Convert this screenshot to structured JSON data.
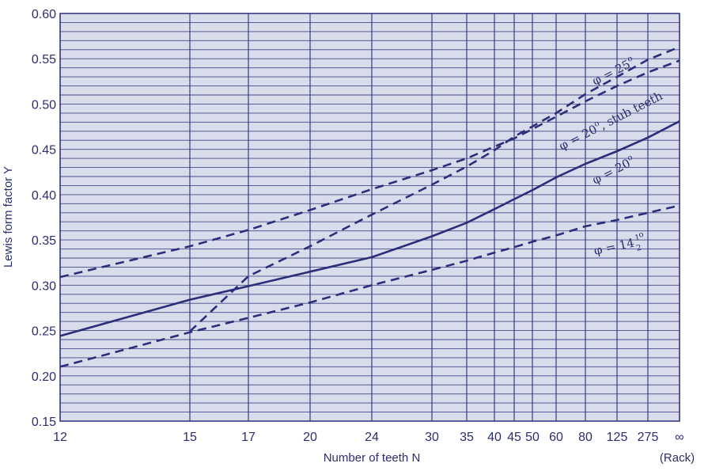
{
  "chart_data": {
    "type": "line",
    "title": "",
    "xlabel": "Number of teeth N",
    "ylabel": "Lewis form factor Y",
    "x_scale": "nonlinear (tooth number scale ending at rack)",
    "x_ticks": [
      "12",
      "15",
      "17",
      "20",
      "24",
      "30",
      "35",
      "40",
      "45",
      "50",
      "60",
      "80",
      "125",
      "275",
      "∞"
    ],
    "x_end_note": "(Rack)",
    "ylim": [
      0.15,
      0.6
    ],
    "y_ticks": [
      "0.15",
      "0.20",
      "0.25",
      "0.30",
      "0.35",
      "0.40",
      "0.45",
      "0.50",
      "0.55",
      "0.60"
    ],
    "grid": true,
    "series": [
      {
        "name": "φ = 25°",
        "label_parts": {
          "main": "φ = 25",
          "sup": "o"
        },
        "style": "dashed",
        "color": "#2b2f7a",
        "points": [
          [
            "15",
            0.249
          ],
          [
            "17",
            0.31
          ],
          [
            "20",
            0.343
          ],
          [
            "24",
            0.378
          ],
          [
            "30",
            0.411
          ],
          [
            "35",
            0.431
          ],
          [
            "40",
            0.449
          ],
          [
            "45",
            0.464
          ],
          [
            "60",
            0.49
          ],
          [
            "80",
            0.511
          ],
          [
            "125",
            0.53
          ],
          [
            "275",
            0.549
          ],
          [
            "∞",
            0.563
          ]
        ]
      },
      {
        "name": "φ = 20°, stub teeth",
        "label_parts": {
          "main": "φ = 20",
          "sup": "o",
          "tail": ", stub teeth"
        },
        "style": "dashed",
        "color": "#2b2f7a",
        "points": [
          [
            "12",
            0.309
          ],
          [
            "15",
            0.343
          ],
          [
            "17",
            0.361
          ],
          [
            "20",
            0.383
          ],
          [
            "24",
            0.406
          ],
          [
            "30",
            0.427
          ],
          [
            "35",
            0.44
          ],
          [
            "40",
            0.453
          ],
          [
            "45",
            0.462
          ],
          [
            "60",
            0.486
          ],
          [
            "80",
            0.503
          ],
          [
            "125",
            0.52
          ],
          [
            "275",
            0.535
          ],
          [
            "∞",
            0.548
          ]
        ]
      },
      {
        "name": "φ = 20°",
        "label_parts": {
          "main": "φ = 20",
          "sup": "o"
        },
        "style": "solid",
        "color": "#2b2f7a",
        "points": [
          [
            "12",
            0.244
          ],
          [
            "15",
            0.284
          ],
          [
            "17",
            0.299
          ],
          [
            "20",
            0.315
          ],
          [
            "24",
            0.331
          ],
          [
            "30",
            0.354
          ],
          [
            "35",
            0.369
          ],
          [
            "40",
            0.384
          ],
          [
            "45",
            0.395
          ],
          [
            "50",
            0.405
          ],
          [
            "60",
            0.419
          ],
          [
            "80",
            0.434
          ],
          [
            "125",
            0.448
          ],
          [
            "275",
            0.463
          ],
          [
            "∞",
            0.481
          ]
        ]
      },
      {
        "name": "φ = 14½°",
        "label_parts": {
          "main": "φ = 14",
          "frac_num": "1",
          "frac_den": "2",
          "sup": "o"
        },
        "style": "dashed",
        "color": "#2b2f7a",
        "points": [
          [
            "12",
            0.21
          ],
          [
            "15",
            0.248
          ],
          [
            "17",
            0.264
          ],
          [
            "20",
            0.281
          ],
          [
            "24",
            0.3
          ],
          [
            "30",
            0.317
          ],
          [
            "35",
            0.327
          ],
          [
            "40",
            0.336
          ],
          [
            "45",
            0.342
          ],
          [
            "50",
            0.348
          ],
          [
            "60",
            0.355
          ],
          [
            "80",
            0.365
          ],
          [
            "125",
            0.372
          ],
          [
            "275",
            0.38
          ],
          [
            "∞",
            0.388
          ]
        ]
      }
    ]
  },
  "style": {
    "plot_background": "#d9dcea",
    "grid_color": "#2b2f7a",
    "text_color": "#2a2e6e"
  }
}
